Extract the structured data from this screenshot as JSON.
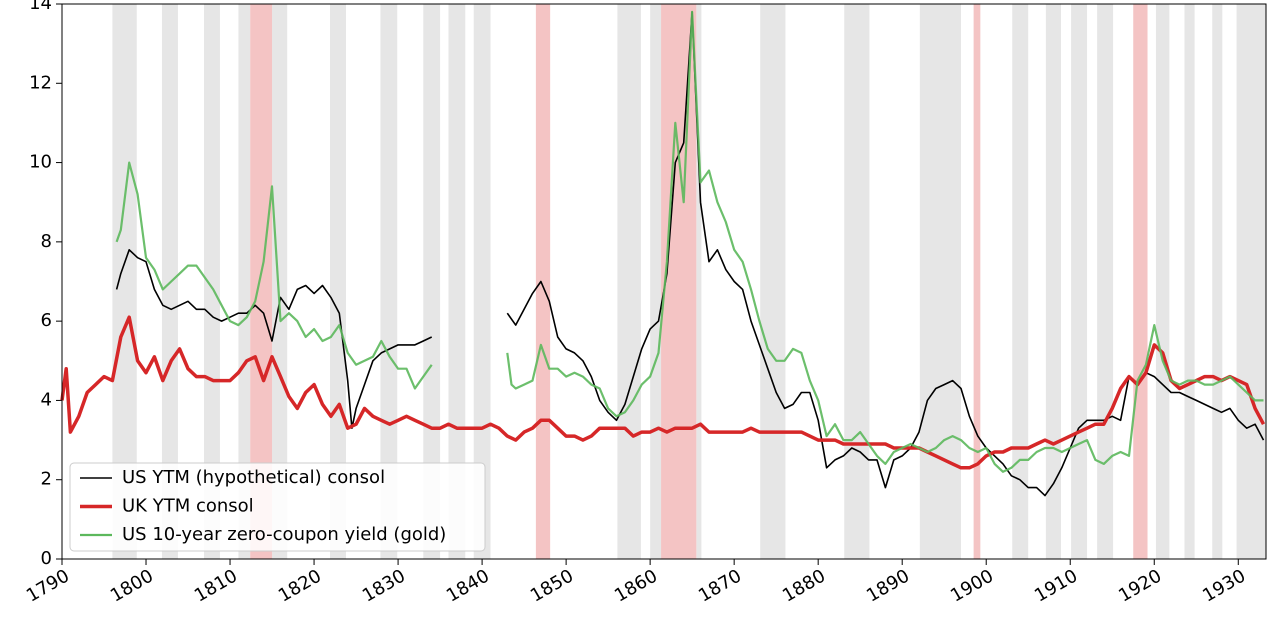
{
  "chart_data": {
    "type": "line",
    "xlim": [
      1790,
      1933.3
    ],
    "ylim": [
      0,
      14
    ],
    "xticks": [
      1790,
      1800,
      1810,
      1820,
      1830,
      1840,
      1850,
      1860,
      1870,
      1880,
      1890,
      1900,
      1910,
      1920,
      1930
    ],
    "yticks": [
      0,
      2,
      4,
      6,
      8,
      10,
      12,
      14
    ],
    "legend": "lower left",
    "recession_color": "#e6e6e6",
    "war_color": "#f4c4c4",
    "recessions": [
      [
        1796.0,
        1798.9
      ],
      [
        1801.9,
        1803.8
      ],
      [
        1806.9,
        1808.8
      ],
      [
        1811.0,
        1812.4
      ],
      [
        1815.0,
        1816.8
      ],
      [
        1821.9,
        1823.8
      ],
      [
        1827.9,
        1829.9
      ],
      [
        1833.0,
        1835.0
      ],
      [
        1836.0,
        1838.0
      ],
      [
        1839.0,
        1841.0
      ],
      [
        1856.1,
        1858.9
      ],
      [
        1860.0,
        1861.3
      ],
      [
        1865.5,
        1866.1
      ],
      [
        1873.1,
        1876.1
      ],
      [
        1883.1,
        1886.1
      ],
      [
        1892.1,
        1897.0
      ],
      [
        1903.1,
        1905.0
      ],
      [
        1907.1,
        1908.9
      ],
      [
        1910.1,
        1912.0
      ],
      [
        1913.2,
        1915.1
      ],
      [
        1920.2,
        1921.8
      ],
      [
        1923.6,
        1924.8
      ],
      [
        1926.9,
        1928.1
      ],
      [
        1929.8,
        1933.3
      ]
    ],
    "wars": [
      [
        1812.4,
        1815.0
      ],
      [
        1846.4,
        1848.1
      ],
      [
        1861.3,
        1865.5
      ],
      [
        1898.5,
        1899.3
      ],
      [
        1917.5,
        1919.2
      ]
    ],
    "series": [
      {
        "name": "US YTM (hypothetical) consol",
        "color": "#000000",
        "x": [
          1796.5,
          1797,
          1798,
          1799,
          1800,
          1801,
          1802,
          1803,
          1804,
          1805,
          1806,
          1807,
          1808,
          1809,
          1810,
          1811,
          1812,
          1813,
          1814,
          1815,
          1816,
          1817,
          1818,
          1819,
          1820,
          1821,
          1822,
          1823,
          1824,
          1824.5,
          1825,
          1826,
          1827,
          1828,
          1829,
          1830,
          1831,
          1832,
          1833,
          1834,
          null,
          1843,
          1844,
          1845,
          1846,
          1847,
          1848,
          1849,
          1850,
          1851,
          1852,
          1853,
          1854,
          1855,
          1856,
          1857,
          1858,
          1859,
          1860,
          1861,
          1862,
          1863,
          1864,
          1865,
          1866,
          1867,
          1868,
          1869,
          1870,
          1871,
          1872,
          1873,
          1874,
          1875,
          1876,
          1877,
          1878,
          1879,
          1880,
          1881,
          1882,
          1883,
          1884,
          1885,
          1886,
          1887,
          1888,
          1889,
          1890,
          1891,
          1892,
          1893,
          1894,
          1895,
          1896,
          1897,
          1898,
          1899,
          1900,
          1901,
          1902,
          1903,
          1904,
          1905,
          1906,
          1907,
          1908,
          1909,
          1910,
          1911,
          1912,
          1913,
          1914,
          1915,
          1916,
          1917,
          1918,
          1919,
          1920,
          1921,
          1922,
          1923,
          1924,
          1925,
          1926,
          1927,
          1928,
          1929,
          1930,
          1931,
          1932,
          1933
        ],
        "values": [
          6.8,
          7.2,
          7.8,
          7.6,
          7.5,
          6.8,
          6.4,
          6.3,
          6.4,
          6.5,
          6.3,
          6.3,
          6.1,
          6.0,
          6.1,
          6.2,
          6.2,
          6.4,
          6.2,
          5.5,
          6.6,
          6.3,
          6.8,
          6.9,
          6.7,
          6.9,
          6.6,
          6.2,
          4.5,
          3.3,
          3.8,
          4.4,
          5.0,
          5.2,
          5.3,
          5.4,
          5.4,
          5.4,
          5.5,
          5.6,
          null,
          6.2,
          5.9,
          6.3,
          6.7,
          7.0,
          6.5,
          5.6,
          5.3,
          5.2,
          5.0,
          4.6,
          4.0,
          3.7,
          3.5,
          3.9,
          4.6,
          5.3,
          5.8,
          6.0,
          7.2,
          10.0,
          10.5,
          13.8,
          9.0,
          7.5,
          7.8,
          7.3,
          7.0,
          6.8,
          6.0,
          5.4,
          4.8,
          4.2,
          3.8,
          3.9,
          4.2,
          4.2,
          3.5,
          2.3,
          2.5,
          2.6,
          2.8,
          2.7,
          2.5,
          2.5,
          1.8,
          2.5,
          2.6,
          2.8,
          3.2,
          4.0,
          4.3,
          4.4,
          4.5,
          4.3,
          3.6,
          3.1,
          2.8,
          2.6,
          2.4,
          2.1,
          2.0,
          1.8,
          1.8,
          1.6,
          1.9,
          2.3,
          2.8,
          3.3,
          3.5,
          3.5,
          3.5,
          3.6,
          3.5,
          4.6,
          4.4,
          4.7,
          4.6,
          4.4,
          4.2,
          4.2,
          4.1,
          4.0,
          3.9,
          3.8,
          3.7,
          3.8,
          3.5,
          3.3,
          3.4,
          3.0
        ]
      },
      {
        "name": "UK YTM consol",
        "color": "#d62728",
        "x": [
          1790,
          1790.5,
          1791,
          1792,
          1793,
          1794,
          1795,
          1796,
          1797,
          1798,
          1799,
          1800,
          1801,
          1802,
          1803,
          1804,
          1805,
          1806,
          1807,
          1808,
          1809,
          1810,
          1811,
          1812,
          1813,
          1814,
          1815,
          1816,
          1817,
          1818,
          1819,
          1820,
          1821,
          1822,
          1823,
          1824,
          1825,
          1826,
          1827,
          1828,
          1829,
          1830,
          1831,
          1832,
          1833,
          1834,
          1835,
          1836,
          1837,
          1838,
          1839,
          1840,
          1841,
          1842,
          1843,
          1844,
          1845,
          1846,
          1847,
          1848,
          1849,
          1850,
          1851,
          1852,
          1853,
          1854,
          1855,
          1856,
          1857,
          1858,
          1859,
          1860,
          1861,
          1862,
          1863,
          1864,
          1865,
          1866,
          1867,
          1868,
          1869,
          1870,
          1871,
          1872,
          1873,
          1874,
          1875,
          1876,
          1877,
          1878,
          1879,
          1880,
          1881,
          1882,
          1883,
          1884,
          1885,
          1886,
          1887,
          1888,
          1889,
          1890,
          1891,
          1892,
          1893,
          1894,
          1895,
          1896,
          1897,
          1898,
          1899,
          1900,
          1901,
          1902,
          1903,
          1904,
          1905,
          1906,
          1907,
          1908,
          1909,
          1910,
          1911,
          1912,
          1913,
          1914,
          1915,
          1916,
          1917,
          1918,
          1919,
          1920,
          1921,
          1922,
          1923,
          1924,
          1925,
          1926,
          1927,
          1928,
          1929,
          1930,
          1931,
          1932,
          1933
        ],
        "values": [
          4.0,
          4.8,
          3.2,
          3.6,
          4.2,
          4.4,
          4.6,
          4.5,
          5.6,
          6.1,
          5.0,
          4.7,
          5.1,
          4.5,
          5.0,
          5.3,
          4.8,
          4.6,
          4.6,
          4.5,
          4.5,
          4.5,
          4.7,
          5.0,
          5.1,
          4.5,
          5.1,
          4.6,
          4.1,
          3.8,
          4.2,
          4.4,
          3.9,
          3.6,
          3.9,
          3.3,
          3.4,
          3.8,
          3.6,
          3.5,
          3.4,
          3.5,
          3.6,
          3.5,
          3.4,
          3.3,
          3.3,
          3.4,
          3.3,
          3.3,
          3.3,
          3.3,
          3.4,
          3.3,
          3.1,
          3.0,
          3.2,
          3.3,
          3.5,
          3.5,
          3.3,
          3.1,
          3.1,
          3.0,
          3.1,
          3.3,
          3.3,
          3.3,
          3.3,
          3.1,
          3.2,
          3.2,
          3.3,
          3.2,
          3.3,
          3.3,
          3.3,
          3.4,
          3.2,
          3.2,
          3.2,
          3.2,
          3.2,
          3.3,
          3.2,
          3.2,
          3.2,
          3.2,
          3.2,
          3.2,
          3.1,
          3.0,
          3.0,
          3.0,
          2.9,
          2.9,
          2.9,
          2.9,
          2.9,
          2.9,
          2.8,
          2.8,
          2.8,
          2.8,
          2.7,
          2.6,
          2.5,
          2.4,
          2.3,
          2.3,
          2.4,
          2.6,
          2.7,
          2.7,
          2.8,
          2.8,
          2.8,
          2.9,
          3.0,
          2.9,
          3.0,
          3.1,
          3.2,
          3.3,
          3.4,
          3.4,
          3.8,
          4.3,
          4.6,
          4.4,
          4.7,
          5.4,
          5.2,
          4.5,
          4.3,
          4.4,
          4.5,
          4.6,
          4.6,
          4.5,
          4.6,
          4.5,
          4.4,
          3.8,
          3.4
        ]
      },
      {
        "name": "US 10-year zero-coupon yield (gold)",
        "color": "#5cb85c",
        "x": [
          1796.5,
          1797,
          1798,
          1799,
          1800,
          1801,
          1802,
          1803,
          1804,
          1805,
          1806,
          1807,
          1808,
          1809,
          1810,
          1811,
          1812,
          1813,
          1814,
          1815,
          1816,
          1817,
          1818,
          1819,
          1820,
          1821,
          1822,
          1823,
          1824,
          1825,
          1826,
          1827,
          1828,
          1829,
          1830,
          1831,
          1832,
          1833,
          1834,
          null,
          1843,
          1843.5,
          1844,
          1845,
          1846,
          1847,
          1848,
          1849,
          1850,
          1851,
          1852,
          1853,
          1854,
          1855,
          1856,
          1857,
          1858,
          1859,
          1860,
          1861,
          1862,
          1863,
          1864,
          1865,
          1866,
          1867,
          1868,
          1869,
          1870,
          1871,
          1872,
          1873,
          1874,
          1875,
          1876,
          1877,
          1878,
          1879,
          1880,
          1881,
          1882,
          1883,
          1884,
          1885,
          1886,
          1887,
          1888,
          1889,
          1890,
          1891,
          1892,
          1893,
          1894,
          1895,
          1896,
          1897,
          1898,
          1899,
          1900,
          1901,
          1902,
          1903,
          1904,
          1905,
          1906,
          1907,
          1908,
          1909,
          1910,
          1911,
          1912,
          1913,
          1914,
          1915,
          1916,
          1917,
          1918,
          1919,
          1920,
          1921,
          1922,
          1923,
          1924,
          1925,
          1926,
          1927,
          1928,
          1929,
          1930,
          1931,
          1932,
          1933
        ],
        "values": [
          8.0,
          8.3,
          10.0,
          9.2,
          7.6,
          7.3,
          6.8,
          7.0,
          7.2,
          7.4,
          7.4,
          7.1,
          6.8,
          6.4,
          6.0,
          5.9,
          6.1,
          6.5,
          7.5,
          9.4,
          6.0,
          6.2,
          6.0,
          5.6,
          5.8,
          5.5,
          5.6,
          5.9,
          5.2,
          4.9,
          5.0,
          5.1,
          5.5,
          5.1,
          4.8,
          4.8,
          4.3,
          4.6,
          4.9,
          null,
          5.2,
          4.4,
          4.3,
          4.4,
          4.5,
          5.4,
          4.8,
          4.8,
          4.6,
          4.7,
          4.6,
          4.4,
          4.3,
          3.8,
          3.6,
          3.7,
          4.0,
          4.4,
          4.6,
          5.2,
          7.5,
          11.0,
          9.0,
          13.8,
          9.5,
          9.8,
          9.0,
          8.5,
          7.8,
          7.5,
          6.8,
          6.0,
          5.3,
          5.0,
          5.0,
          5.3,
          5.2,
          4.5,
          4.0,
          3.1,
          3.4,
          3.0,
          3.0,
          3.2,
          2.9,
          2.6,
          2.4,
          2.7,
          2.8,
          2.9,
          2.8,
          2.7,
          2.8,
          3.0,
          3.1,
          3.0,
          2.8,
          2.7,
          2.8,
          2.4,
          2.2,
          2.3,
          2.5,
          2.5,
          2.7,
          2.8,
          2.8,
          2.7,
          2.8,
          2.9,
          3.0,
          2.5,
          2.4,
          2.6,
          2.7,
          2.6,
          4.5,
          4.9,
          5.9,
          5.0,
          4.5,
          4.4,
          4.5,
          4.5,
          4.4,
          4.4,
          4.5,
          4.6,
          4.4,
          4.2,
          4.0,
          4.0
        ]
      }
    ]
  }
}
